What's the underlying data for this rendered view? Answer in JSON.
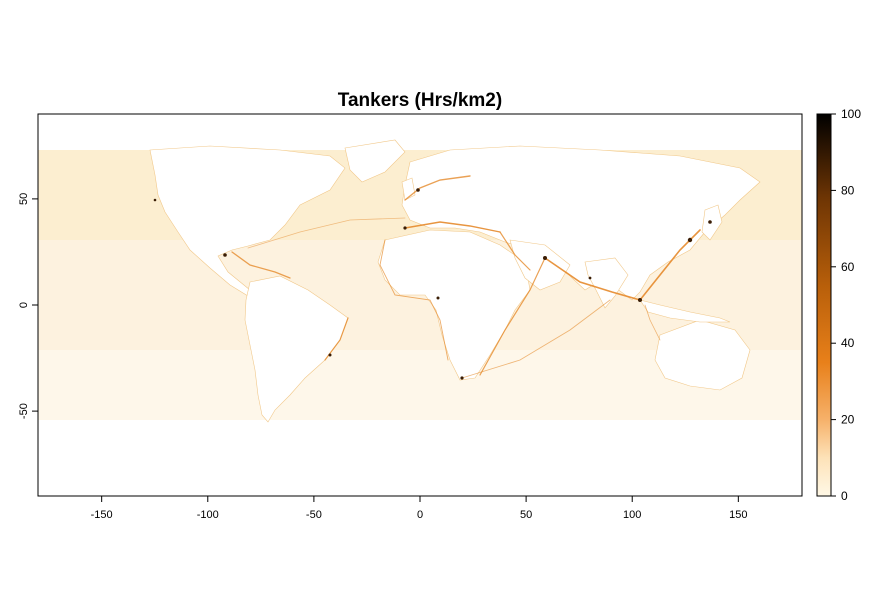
{
  "map": {
    "title": "Tankers (Hrs/km2)",
    "projection": "plate-carree",
    "x_range": [
      -180,
      180
    ],
    "y_range": [
      -90,
      90
    ],
    "x_ticks": [
      -150,
      -100,
      -50,
      0,
      50,
      100,
      150
    ],
    "y_ticks": [
      50,
      0,
      -50
    ],
    "land_color": "#ffffff",
    "ocean_background_color": "#fdefd3",
    "lane_color": "#e07a1a",
    "port_color": "#3a1d05"
  },
  "legend": {
    "ticks": [
      0,
      20,
      40,
      60,
      80,
      100
    ],
    "range": [
      0,
      100
    ],
    "colors": [
      "#fff8e6",
      "#fde2b8",
      "#f6b16a",
      "#e8801a",
      "#b85f0a",
      "#6e3504",
      "#000000"
    ]
  }
}
